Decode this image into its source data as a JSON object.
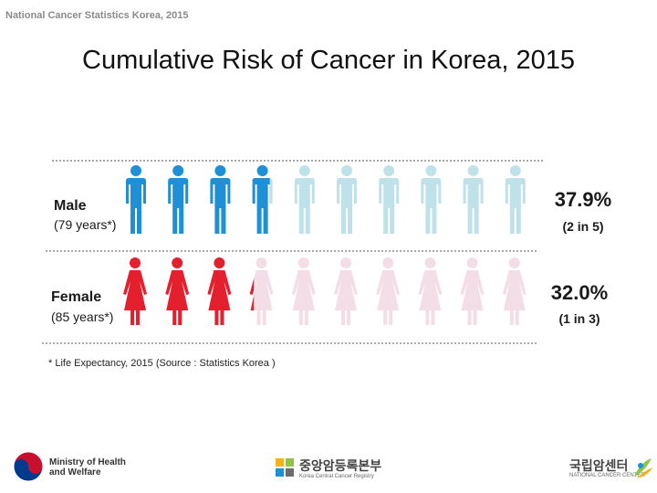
{
  "header_note": "National Cancer Statistics Korea, 2015",
  "title": "Cumulative Risk of Cancer in Korea, 2015",
  "chart_data": {
    "type": "pictograph",
    "title": "Cumulative Risk of Cancer in Korea, 2015",
    "icons_per_row": 10,
    "series": [
      {
        "name": "Male",
        "subtitle": "(79 years*)",
        "percent": 37.9,
        "percent_label": "37.9%",
        "ratio_label": "(2 in 5)",
        "filled_color": "#1f8fd6",
        "empty_color": "#bfe1ea"
      },
      {
        "name": "Female",
        "subtitle": "(85 years*)",
        "percent": 32.0,
        "percent_label": "32.0%",
        "ratio_label": "(1 in 3)",
        "filled_color": "#e5202e",
        "empty_color": "#f3dde6"
      }
    ],
    "footnote": "* Life Expectancy, 2015 (Source : Statistics Korea )"
  },
  "logos": {
    "ministry_line1": "Ministry of Health",
    "ministry_line2": "and Welfare",
    "registry_kr": "중앙암등록본부",
    "registry_en": "Korea Central Cancer Registry",
    "nci_kr": "국립암센터",
    "nci_en": "NATIONAL CANCER CENTER"
  },
  "colors": {
    "ministry_red": "#c8102e",
    "ministry_blue": "#003a8c"
  }
}
